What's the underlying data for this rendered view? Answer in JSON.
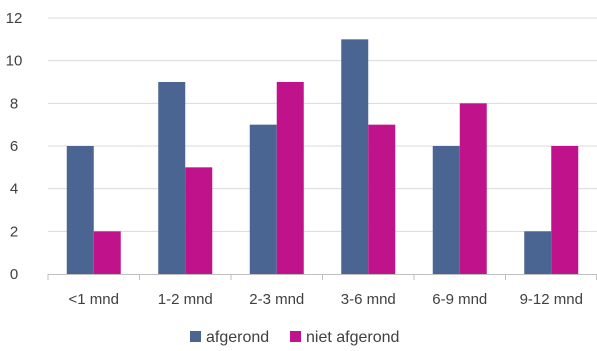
{
  "chart_data": {
    "type": "bar",
    "title": "",
    "xlabel": "",
    "ylabel": "",
    "categories": [
      "<1 mnd",
      "1-2 mnd",
      "2-3 mnd",
      "3-6 mnd",
      "6-9 mnd",
      "9-12 mnd"
    ],
    "series": [
      {
        "name": "afgerond",
        "values": [
          6,
          9,
          7,
          11,
          6,
          2
        ],
        "color": "#4a6592"
      },
      {
        "name": "niet afgerond",
        "values": [
          2,
          5,
          9,
          7,
          8,
          6
        ],
        "color": "#c0128a"
      }
    ],
    "ylim": [
      0,
      12
    ],
    "yticks": [
      "0",
      "2",
      "4",
      "6",
      "8",
      "10",
      "12"
    ],
    "grid": true,
    "legend": "bottom"
  }
}
